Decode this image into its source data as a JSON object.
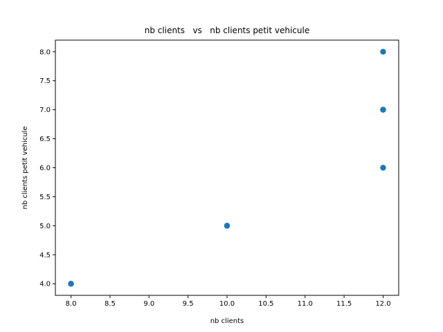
{
  "chart_data": {
    "type": "scatter",
    "title": "nb clients   vs   nb clients petit vehicule",
    "xlabel": "nb clients",
    "ylabel": "nb clients petit vehicule",
    "xlim": [
      7.8,
      12.2
    ],
    "ylim": [
      3.8,
      8.2
    ],
    "xticks": [
      8.0,
      8.5,
      9.0,
      9.5,
      10.0,
      10.5,
      11.0,
      11.5,
      12.0
    ],
    "xtick_labels": [
      "8.0",
      "8.5",
      "9.0",
      "9.5",
      "10.0",
      "10.5",
      "11.0",
      "11.5",
      "12.0"
    ],
    "yticks": [
      4.0,
      4.5,
      5.0,
      5.5,
      6.0,
      6.5,
      7.0,
      7.5,
      8.0
    ],
    "ytick_labels": [
      "4.0",
      "4.5",
      "5.0",
      "5.5",
      "6.0",
      "6.5",
      "7.0",
      "7.5",
      "8.0"
    ],
    "grid": false,
    "marker_color": "#1f77b4",
    "points": [
      {
        "x": 8,
        "y": 4
      },
      {
        "x": 8,
        "y": 4
      },
      {
        "x": 10,
        "y": 5
      },
      {
        "x": 10,
        "y": 5
      },
      {
        "x": 12,
        "y": 6
      },
      {
        "x": 12,
        "y": 7
      },
      {
        "x": 12,
        "y": 7
      },
      {
        "x": 12,
        "y": 8
      }
    ]
  }
}
